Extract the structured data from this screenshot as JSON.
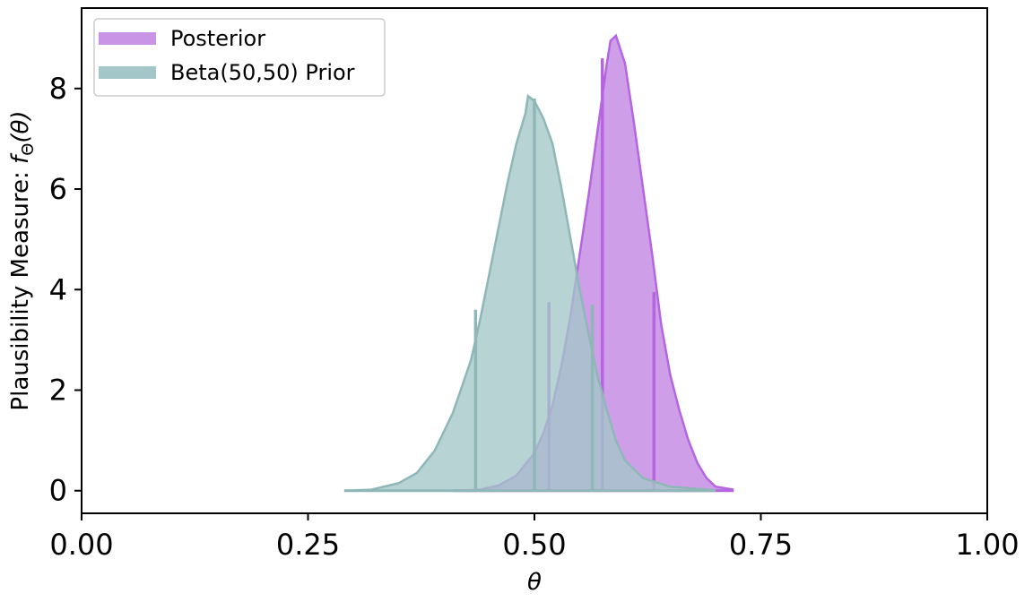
{
  "chart_data": {
    "type": "area",
    "xlabel": "θ",
    "ylabel": "Plausibility Measure: f_Θ(θ)",
    "ylabel_parts": {
      "text": "Plausibility Measure: ",
      "f": "f",
      "sub": "Θ",
      "arg": "(θ)"
    },
    "xlim": [
      0.0,
      1.0
    ],
    "ylim": [
      -0.45,
      9.6
    ],
    "x_ticks": [
      0.0,
      0.25,
      0.5,
      0.75,
      1.0
    ],
    "x_tick_labels": [
      "0.00",
      "0.25",
      "0.50",
      "0.75",
      "1.00"
    ],
    "y_ticks": [
      0,
      2,
      4,
      6,
      8
    ],
    "y_tick_labels": [
      "0",
      "2",
      "4",
      "6",
      "8"
    ],
    "legend_position": "top-left",
    "series": [
      {
        "name": "Posterior",
        "color": "#b565e0",
        "fill_color": "#c994e6",
        "points": [
          [
            0.41,
            0.0
          ],
          [
            0.44,
            0.02
          ],
          [
            0.46,
            0.1
          ],
          [
            0.48,
            0.3
          ],
          [
            0.5,
            0.75
          ],
          [
            0.51,
            1.15
          ],
          [
            0.52,
            1.7
          ],
          [
            0.53,
            2.5
          ],
          [
            0.54,
            3.5
          ],
          [
            0.55,
            4.7
          ],
          [
            0.56,
            5.9
          ],
          [
            0.57,
            7.2
          ],
          [
            0.58,
            8.5
          ],
          [
            0.584,
            8.95
          ],
          [
            0.59,
            9.05
          ],
          [
            0.6,
            8.5
          ],
          [
            0.61,
            7.3
          ],
          [
            0.62,
            6.0
          ],
          [
            0.63,
            4.7
          ],
          [
            0.64,
            3.3
          ],
          [
            0.65,
            2.3
          ],
          [
            0.66,
            1.6
          ],
          [
            0.67,
            1.0
          ],
          [
            0.68,
            0.55
          ],
          [
            0.69,
            0.25
          ],
          [
            0.7,
            0.08
          ],
          [
            0.72,
            0.02
          ]
        ],
        "quantile_lines": [
          {
            "x": 0.516,
            "y": 3.75
          },
          {
            "x": 0.575,
            "y": 8.6
          },
          {
            "x": 0.632,
            "y": 3.95
          }
        ]
      },
      {
        "name": "Beta(50,50) Prior",
        "color": "#8fb7b8",
        "fill_color": "#a3c6c8",
        "points": [
          [
            0.29,
            0.0
          ],
          [
            0.32,
            0.02
          ],
          [
            0.35,
            0.15
          ],
          [
            0.37,
            0.35
          ],
          [
            0.39,
            0.8
          ],
          [
            0.41,
            1.55
          ],
          [
            0.43,
            2.6
          ],
          [
            0.44,
            3.4
          ],
          [
            0.45,
            4.3
          ],
          [
            0.46,
            5.2
          ],
          [
            0.47,
            6.1
          ],
          [
            0.48,
            6.9
          ],
          [
            0.49,
            7.5
          ],
          [
            0.493,
            7.85
          ],
          [
            0.5,
            7.75
          ],
          [
            0.51,
            7.4
          ],
          [
            0.52,
            6.9
          ],
          [
            0.53,
            6.0
          ],
          [
            0.54,
            5.0
          ],
          [
            0.55,
            4.0
          ],
          [
            0.56,
            3.1
          ],
          [
            0.57,
            2.25
          ],
          [
            0.58,
            1.6
          ],
          [
            0.59,
            1.0
          ],
          [
            0.6,
            0.6
          ],
          [
            0.62,
            0.25
          ],
          [
            0.65,
            0.08
          ],
          [
            0.7,
            0.01
          ]
        ],
        "quantile_lines": [
          {
            "x": 0.435,
            "y": 3.6
          },
          {
            "x": 0.5,
            "y": 7.8
          },
          {
            "x": 0.564,
            "y": 3.7
          }
        ]
      }
    ]
  }
}
